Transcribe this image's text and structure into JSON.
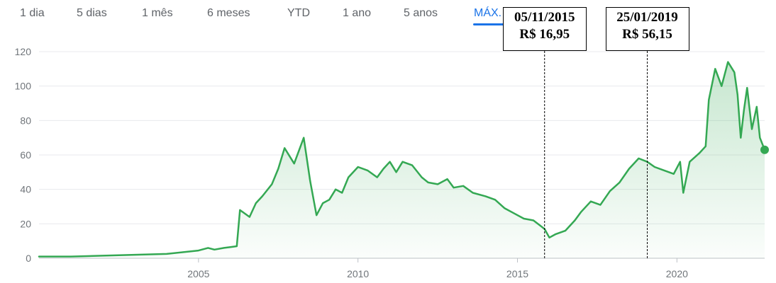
{
  "tabs": [
    {
      "label": "1 dia",
      "active": false
    },
    {
      "label": "5 dias",
      "active": false
    },
    {
      "label": "1 mês",
      "active": false
    },
    {
      "label": "6 meses",
      "active": false
    },
    {
      "label": "YTD",
      "active": false
    },
    {
      "label": "1 ano",
      "active": false
    },
    {
      "label": "5 anos",
      "active": false
    },
    {
      "label": "MÁX.",
      "active": true
    }
  ],
  "colors": {
    "line": "#34a853",
    "grid": "#e8eaed",
    "axis_text": "#70757a",
    "tab_active": "#1a73e8",
    "tab_inactive": "#5f6368"
  },
  "annotations": [
    {
      "date": "05/11/2015",
      "value": "R$ 16,95",
      "x": 2015.85
    },
    {
      "date": "25/01/2019",
      "value": "R$ 56,15",
      "x": 2019.07
    }
  ],
  "chart_data": {
    "type": "area",
    "title": "",
    "xlabel": "",
    "ylabel": "",
    "xlim": [
      2000.0,
      2022.75
    ],
    "ylim": [
      0,
      120
    ],
    "y_ticks": [
      0,
      20,
      40,
      60,
      80,
      100,
      120
    ],
    "x_ticks": [
      2005,
      2010,
      2015,
      2020
    ],
    "grid": true,
    "series": [
      {
        "x": [
          2000.0,
          2001.0,
          2002.0,
          2003.0,
          2004.0,
          2004.5,
          2005.0,
          2005.3,
          2005.5,
          2005.8,
          2006.0,
          2006.2,
          2006.3,
          2006.6,
          2006.8,
          2007.0,
          2007.3,
          2007.5,
          2007.7,
          2008.0,
          2008.3,
          2008.5,
          2008.7,
          2008.9,
          2009.1,
          2009.3,
          2009.5,
          2009.7,
          2010.0,
          2010.3,
          2010.6,
          2010.8,
          2011.0,
          2011.2,
          2011.4,
          2011.7,
          2012.0,
          2012.2,
          2012.5,
          2012.8,
          2013.0,
          2013.3,
          2013.6,
          2014.0,
          2014.3,
          2014.6,
          2014.9,
          2015.2,
          2015.5,
          2015.85,
          2016.0,
          2016.2,
          2016.5,
          2016.8,
          2017.0,
          2017.3,
          2017.6,
          2017.9,
          2018.2,
          2018.5,
          2018.8,
          2019.07,
          2019.3,
          2019.6,
          2019.9,
          2020.1,
          2020.2,
          2020.4,
          2020.7,
          2020.9,
          2021.0,
          2021.2,
          2021.4,
          2021.6,
          2021.8,
          2021.9,
          2022.0,
          2022.1,
          2022.2,
          2022.35,
          2022.5,
          2022.6,
          2022.75
        ],
        "y": [
          1,
          1,
          1.5,
          2,
          2.5,
          3.5,
          4.5,
          6,
          5,
          6,
          6.5,
          7,
          28,
          24,
          32,
          36,
          43,
          52,
          64,
          55,
          70,
          45,
          25,
          32,
          34,
          40,
          38,
          47,
          53,
          51,
          47,
          52,
          56,
          50,
          56,
          54,
          47,
          44,
          43,
          46,
          41,
          42,
          38,
          36,
          34,
          29,
          26,
          23,
          22,
          17,
          12,
          14,
          16,
          22,
          27,
          33,
          31,
          39,
          44,
          52,
          58,
          56,
          53,
          51,
          49,
          56,
          38,
          56,
          61,
          65,
          92,
          110,
          100,
          114,
          108,
          95,
          70,
          86,
          99,
          75,
          88,
          70,
          63
        ]
      }
    ]
  }
}
